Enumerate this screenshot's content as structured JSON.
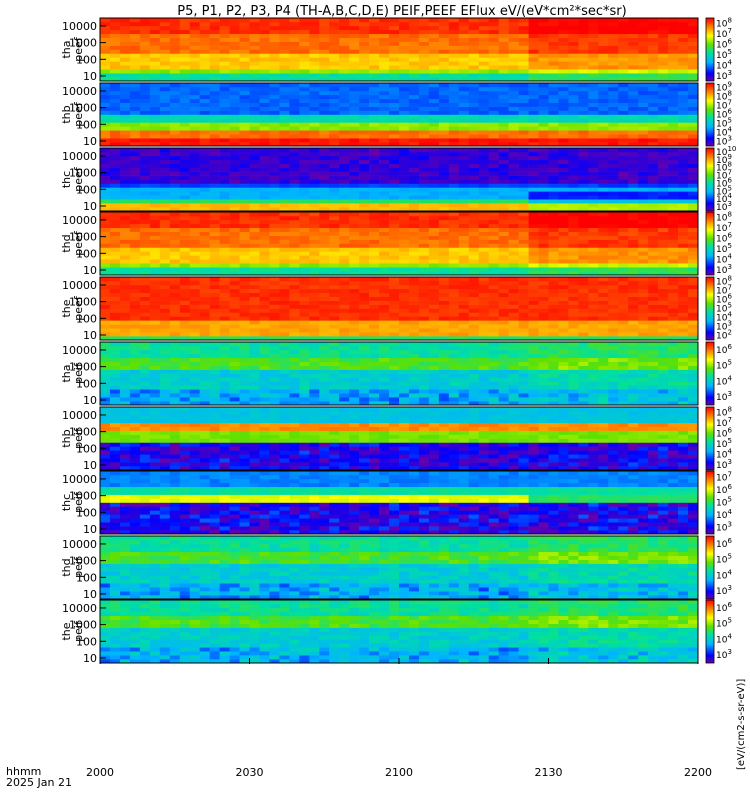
{
  "title": "P5, P1, P2, P3, P4 (TH-A,B,C,D,E) PEIF,PEEF EFlux eV/(eV*cm²*sec*sr)",
  "colorbar_unit": "[eV/(cm2-s-sr-eV)]",
  "time_axis": {
    "label_line1": "hhmm",
    "label_line2": "2025 Jan 21",
    "ticks": [
      "2000",
      "2030",
      "2100",
      "2130",
      "2200"
    ]
  },
  "chart_data": [
    {
      "type": "heatmap",
      "name": "tha peef",
      "ylabel": [
        "tha",
        "peef"
      ],
      "yticks": [
        "10",
        "100",
        "1000",
        "10000"
      ],
      "ylim": [
        5,
        30000
      ],
      "log_y": true,
      "cb_exp": [
        3,
        8
      ],
      "profile": "peef_hot"
    },
    {
      "type": "heatmap",
      "name": "thb peef",
      "ylabel": [
        "thb",
        "peef"
      ],
      "yticks": [
        "10",
        "100",
        "1000",
        "10000"
      ],
      "ylim": [
        5,
        30000
      ],
      "log_y": true,
      "cb_exp": [
        3,
        9
      ],
      "profile": "peef_cold"
    },
    {
      "type": "heatmap",
      "name": "thc peef",
      "ylabel": [
        "thc",
        "peef"
      ],
      "yticks": [
        "10",
        "100",
        "1000",
        "10000"
      ],
      "ylim": [
        5,
        30000
      ],
      "log_y": true,
      "cb_exp": [
        3,
        10
      ],
      "profile": "peef_noise"
    },
    {
      "type": "heatmap",
      "name": "thd peef",
      "ylabel": [
        "thd",
        "peef"
      ],
      "yticks": [
        "10",
        "100",
        "1000",
        "10000"
      ],
      "ylim": [
        5,
        30000
      ],
      "log_y": true,
      "cb_exp": [
        3,
        8
      ],
      "profile": "peef_hot"
    },
    {
      "type": "heatmap",
      "name": "the peef",
      "ylabel": [
        "the",
        "peef"
      ],
      "yticks": [
        "10",
        "100",
        "1000",
        "10000"
      ],
      "ylim": [
        5,
        30000
      ],
      "log_y": true,
      "cb_exp": [
        2,
        8
      ],
      "profile": "peef_hot2"
    },
    {
      "type": "heatmap",
      "name": "tha peif",
      "ylabel": [
        "tha",
        "peif"
      ],
      "yticks": [
        "10",
        "100",
        "1000",
        "10000"
      ],
      "ylim": [
        5,
        30000
      ],
      "log_y": true,
      "cb_exp": [
        3,
        6
      ],
      "profile": "peif"
    },
    {
      "type": "heatmap",
      "name": "thb peif",
      "ylabel": [
        "thb",
        "peif"
      ],
      "yticks": [
        "10",
        "100",
        "1000",
        "10000"
      ],
      "ylim": [
        5,
        30000
      ],
      "log_y": true,
      "cb_exp": [
        3,
        8
      ],
      "profile": "peif_band"
    },
    {
      "type": "heatmap",
      "name": "thc peif",
      "ylabel": [
        "thc",
        "peif"
      ],
      "yticks": [
        "10",
        "100",
        "1000",
        "10000"
      ],
      "ylim": [
        5,
        30000
      ],
      "log_y": true,
      "cb_exp": [
        3,
        7
      ],
      "profile": "peif_band2"
    },
    {
      "type": "heatmap",
      "name": "thd peif",
      "ylabel": [
        "thd",
        "peif"
      ],
      "yticks": [
        "10",
        "100",
        "1000",
        "10000"
      ],
      "ylim": [
        5,
        30000
      ],
      "log_y": true,
      "cb_exp": [
        3,
        6
      ],
      "profile": "peif"
    },
    {
      "type": "heatmap",
      "name": "the peif",
      "ylabel": [
        "the",
        "peif"
      ],
      "yticks": [
        "10",
        "100",
        "1000",
        "10000"
      ],
      "ylim": [
        5,
        30000
      ],
      "log_y": true,
      "cb_exp": [
        3,
        6
      ],
      "profile": "peif"
    }
  ]
}
